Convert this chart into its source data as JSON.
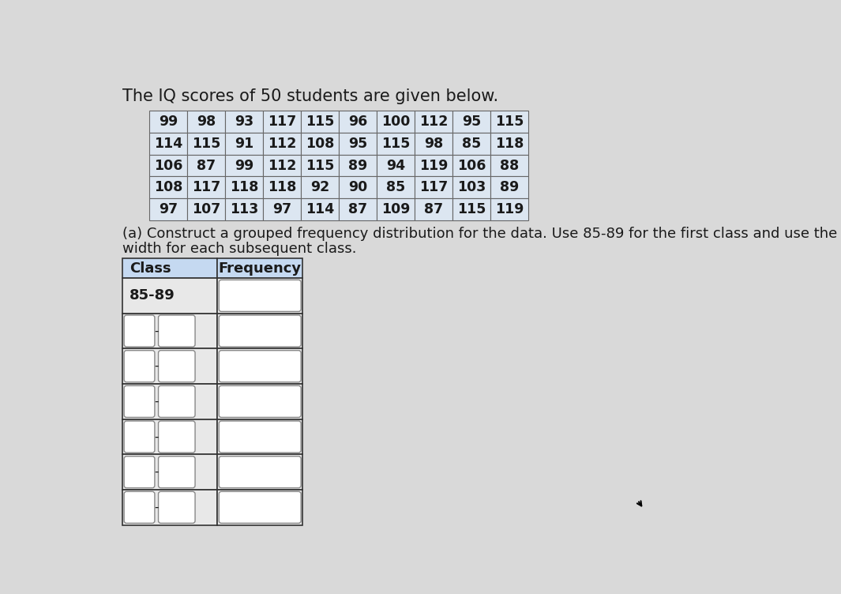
{
  "title": "The IQ scores of 50 students are given below.",
  "instruction_line1": "(a) Construct a grouped frequency distribution for the data. Use 85-89 for the first class and use the same",
  "instruction_line2": "width for each subsequent class.",
  "data_table": [
    [
      99,
      98,
      93,
      117,
      115,
      96,
      100,
      112,
      95,
      115
    ],
    [
      114,
      115,
      91,
      112,
      108,
      95,
      115,
      98,
      85,
      118
    ],
    [
      106,
      87,
      99,
      112,
      115,
      89,
      94,
      119,
      106,
      88
    ],
    [
      108,
      117,
      118,
      118,
      92,
      90,
      85,
      117,
      103,
      89
    ],
    [
      97,
      107,
      113,
      97,
      114,
      87,
      109,
      87,
      115,
      119
    ]
  ],
  "freq_table_header": [
    "Class",
    "Frequency"
  ],
  "freq_first_class": "85-89",
  "num_freq_rows": 7,
  "bg_color": "#d9d9d9",
  "data_cell_color": "#dce6f1",
  "header_cell_color": "#c5d9f1",
  "freq_header_color": "#c5d9f1",
  "freq_row_color": "#e8e8e8",
  "box_color": "#ffffff",
  "box_border_color": "#888888",
  "table_border_color": "#555555",
  "text_color": "#1a1a1a"
}
